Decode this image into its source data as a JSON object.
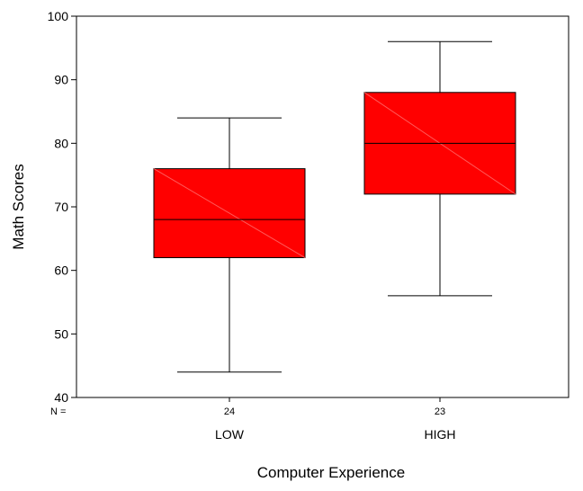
{
  "chart_data": {
    "type": "boxplot",
    "xlabel": "Computer Experience",
    "ylabel": "Math Scores",
    "ylim": [
      40,
      100
    ],
    "yticks": [
      40,
      50,
      60,
      70,
      80,
      90,
      100
    ],
    "n_label": "N =",
    "categories": [
      "LOW",
      "HIGH"
    ],
    "n": [
      "24",
      "23"
    ],
    "boxes": [
      {
        "category": "LOW",
        "min": 44,
        "q1": 62,
        "median": 68,
        "q3": 76,
        "max": 84
      },
      {
        "category": "HIGH",
        "min": 56,
        "q1": 72,
        "median": 80,
        "q3": 88,
        "max": 96
      }
    ],
    "box_color": "#ff0000"
  }
}
